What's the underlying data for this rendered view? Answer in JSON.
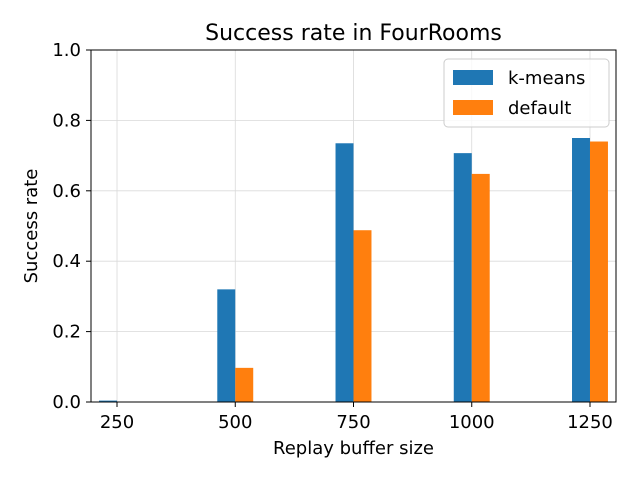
{
  "chart_data": {
    "type": "bar",
    "title": "Success rate in FourRooms",
    "xlabel": "Replay buffer size",
    "ylabel": "Success rate",
    "x": [
      250,
      500,
      750,
      1000,
      1250
    ],
    "xticks": [
      "250",
      "500",
      "750",
      "1000",
      "1250"
    ],
    "xlim": [
      195,
      1305
    ],
    "ylim": [
      0,
      1.0
    ],
    "yticks": [
      "0.0",
      "0.2",
      "0.4",
      "0.6",
      "0.8",
      "1.0"
    ],
    "bar_width": 38,
    "grid": true,
    "legend_position": "top-right",
    "series": [
      {
        "name": "k-means",
        "color": "#1f77b4",
        "values": [
          0.004,
          0.32,
          0.735,
          0.707,
          0.75
        ]
      },
      {
        "name": "default",
        "color": "#ff7f0e",
        "values": [
          0.0,
          0.097,
          0.488,
          0.648,
          0.74
        ]
      }
    ]
  }
}
